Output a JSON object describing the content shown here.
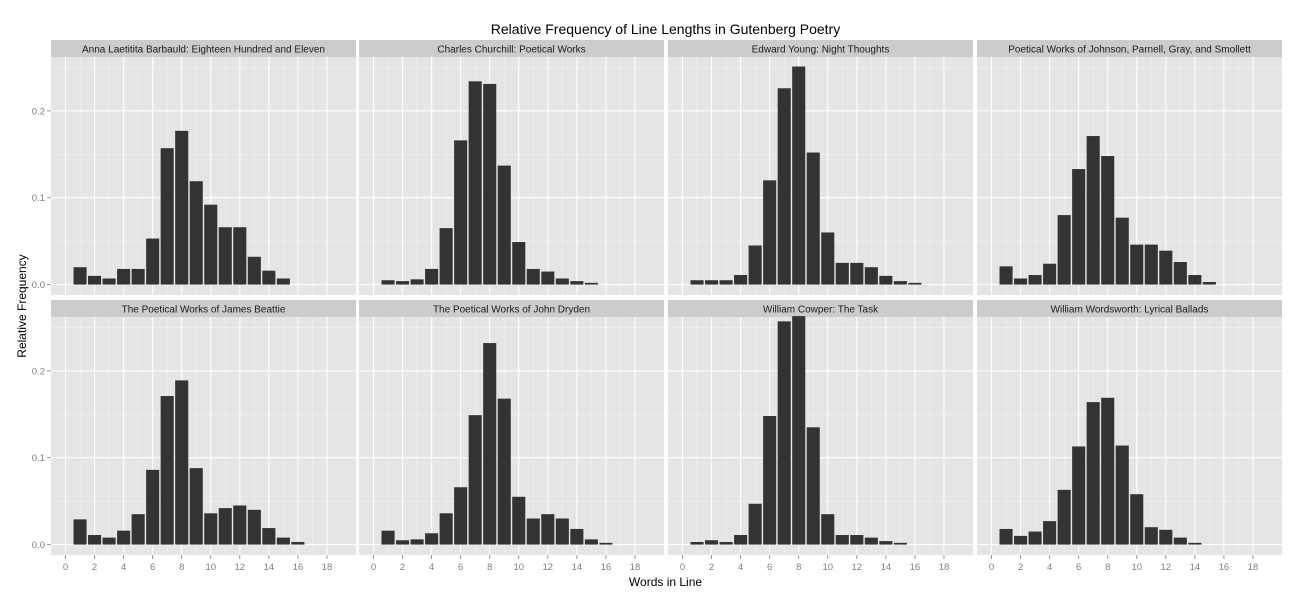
{
  "chart_data": {
    "type": "bar",
    "title": "Relative Frequency of Line Lengths in Gutenberg Poetry",
    "xlabel": "Words in Line",
    "ylabel": "Relative Frequency",
    "xlim": [
      -1,
      20
    ],
    "ylim": [
      -0.012,
      0.262
    ],
    "x_ticks": [
      0,
      2,
      4,
      6,
      8,
      10,
      12,
      14,
      16,
      18
    ],
    "y_ticks": [
      0.0,
      0.1,
      0.2
    ],
    "y_tick_labels": [
      "0.0",
      "0.1",
      "0.2"
    ],
    "x": [
      1,
      2,
      3,
      4,
      5,
      6,
      7,
      8,
      9,
      10,
      11,
      12,
      13,
      14,
      15,
      16
    ],
    "grid": true,
    "facets": [
      {
        "name": "Anna Laetitita Barbauld: Eighteen Hundred and Eleven",
        "values": [
          0.02,
          0.01,
          0.007,
          0.018,
          0.018,
          0.053,
          0.157,
          0.177,
          0.119,
          0.092,
          0.066,
          0.066,
          0.032,
          0.016,
          0.007,
          0.0
        ]
      },
      {
        "name": "Charles Churchill: Poetical Works",
        "values": [
          0.005,
          0.004,
          0.006,
          0.018,
          0.065,
          0.166,
          0.234,
          0.231,
          0.137,
          0.049,
          0.018,
          0.015,
          0.007,
          0.004,
          0.002,
          0.0
        ]
      },
      {
        "name": "Edward Young: Night Thoughts",
        "values": [
          0.005,
          0.005,
          0.005,
          0.011,
          0.045,
          0.12,
          0.226,
          0.251,
          0.152,
          0.06,
          0.025,
          0.025,
          0.02,
          0.01,
          0.004,
          0.002
        ]
      },
      {
        "name": "Poetical Works of Johnson, Parnell, Gray, and Smollett",
        "values": [
          0.021,
          0.007,
          0.011,
          0.024,
          0.08,
          0.133,
          0.171,
          0.148,
          0.077,
          0.046,
          0.046,
          0.039,
          0.026,
          0.011,
          0.003,
          0.0
        ]
      },
      {
        "name": "The Poetical Works of James Beattie",
        "values": [
          0.029,
          0.011,
          0.008,
          0.016,
          0.035,
          0.086,
          0.171,
          0.189,
          0.088,
          0.036,
          0.042,
          0.045,
          0.04,
          0.019,
          0.008,
          0.003
        ]
      },
      {
        "name": "The Poetical Works of John Dryden",
        "values": [
          0.016,
          0.005,
          0.006,
          0.013,
          0.036,
          0.066,
          0.149,
          0.232,
          0.168,
          0.055,
          0.03,
          0.035,
          0.03,
          0.018,
          0.006,
          0.002
        ]
      },
      {
        "name": "William Cowper: The Task",
        "values": [
          0.003,
          0.005,
          0.003,
          0.011,
          0.047,
          0.148,
          0.257,
          0.263,
          0.135,
          0.035,
          0.011,
          0.011,
          0.008,
          0.004,
          0.002,
          0.0
        ]
      },
      {
        "name": "William Wordsworth: Lyrical Ballads",
        "values": [
          0.018,
          0.01,
          0.015,
          0.027,
          0.063,
          0.113,
          0.164,
          0.169,
          0.114,
          0.058,
          0.02,
          0.017,
          0.008,
          0.002,
          0.0,
          0.0
        ]
      }
    ]
  },
  "colors": {
    "panel_background": "#e5e5e5",
    "strip_background": "#cccccc",
    "major_grid": "#ffffff",
    "minor_grid": "#f2f2f2",
    "bar_fill": "#333333",
    "tick_label": "#7f7f7f"
  }
}
